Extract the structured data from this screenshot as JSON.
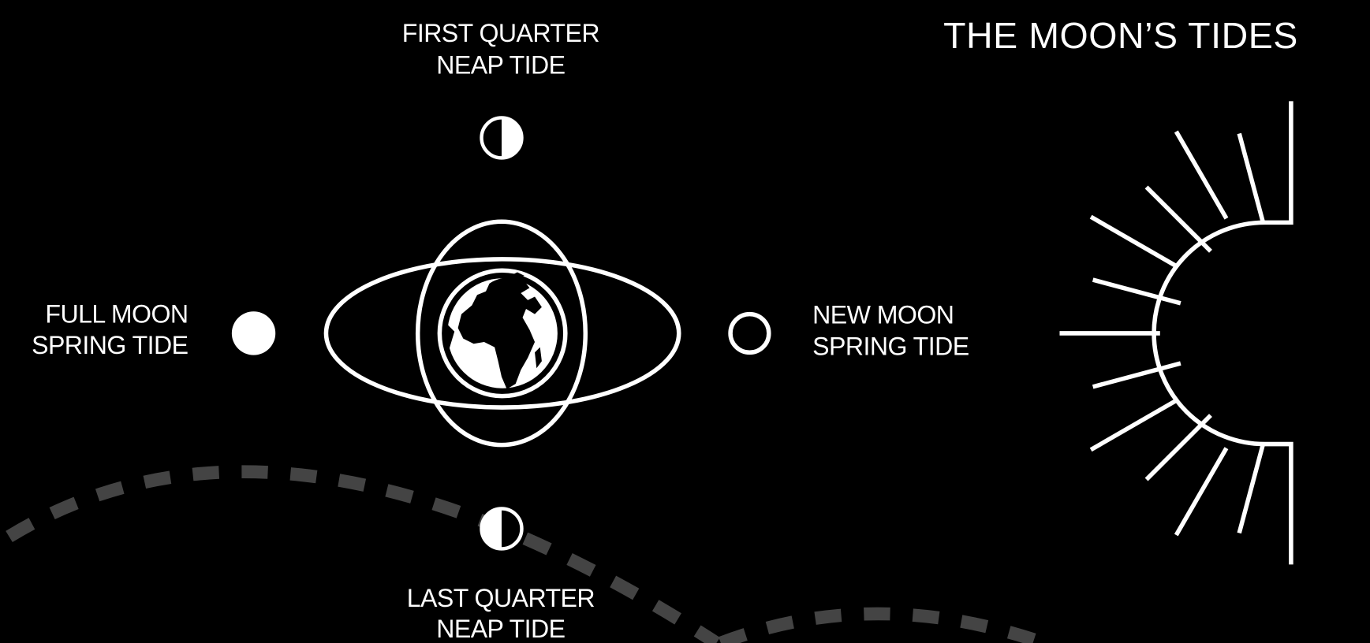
{
  "title": "THE MOON’S TIDES",
  "phases": [
    {
      "name": "FIRST QUARTER",
      "tide": "NEAP TIDE"
    },
    {
      "name": "FULL MOON",
      "tide": "SPRING TIDE"
    },
    {
      "name": "NEW MOON",
      "tide": "SPRING TIDE"
    },
    {
      "name": "LAST QUARTER",
      "tide": "NEAP TIDE"
    }
  ]
}
